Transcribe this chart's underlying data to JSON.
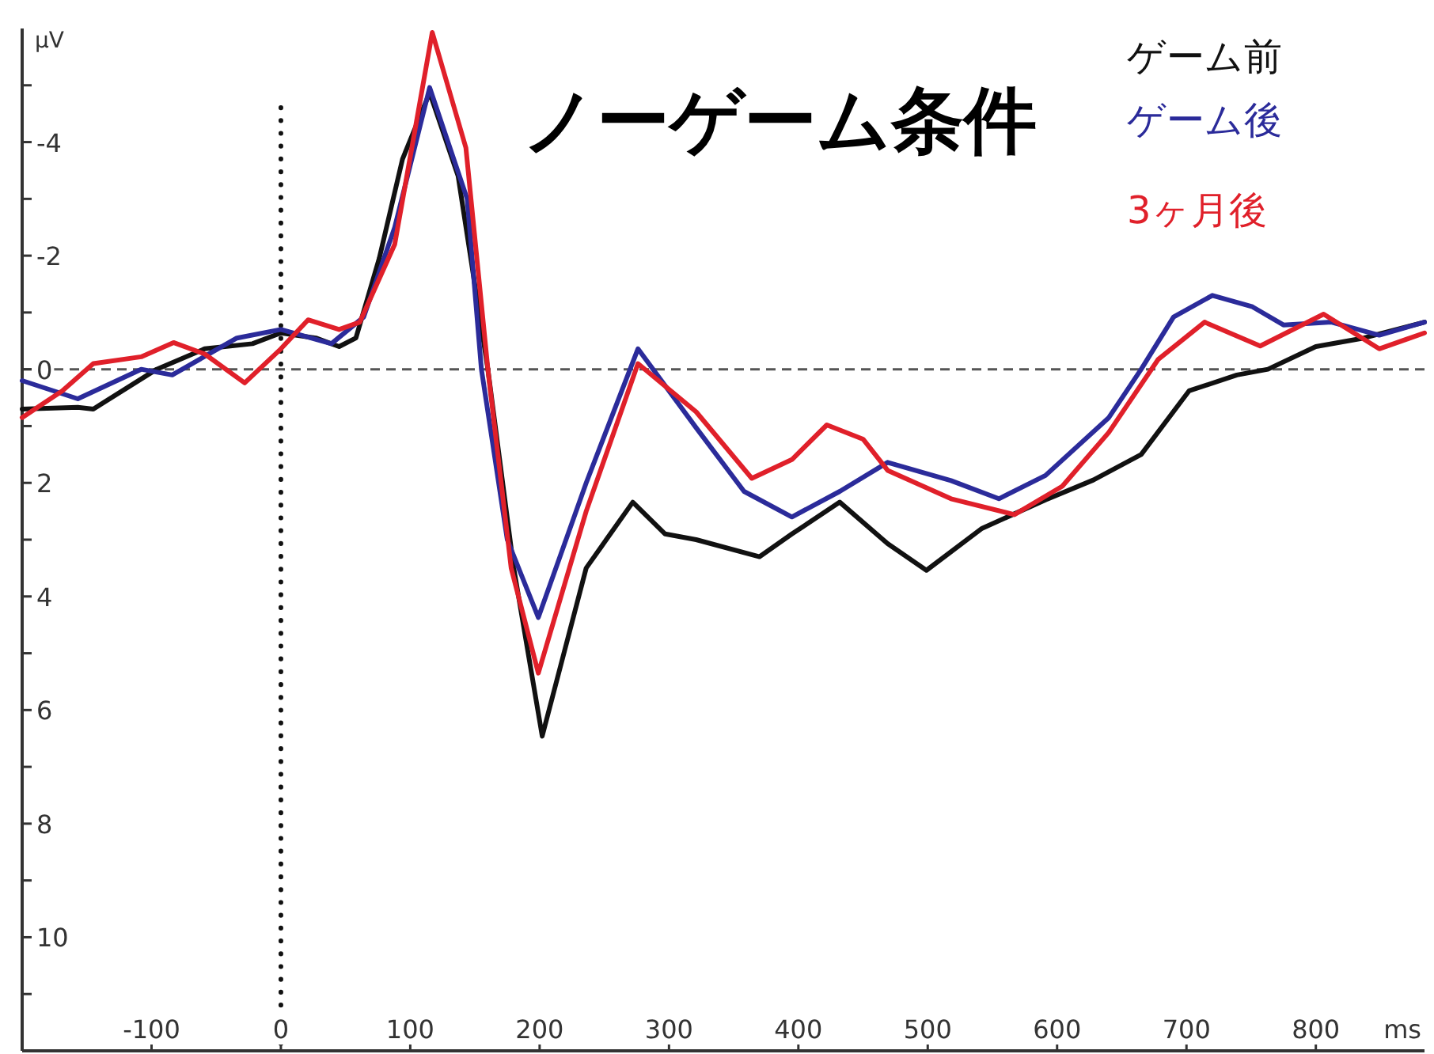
{
  "chart_data": {
    "type": "line",
    "title": "ノーゲーム条件",
    "xlabel": "ms",
    "ylabel": "μV",
    "xlim": [
      -200,
      884
    ],
    "ylim": [
      12,
      -6
    ],
    "xticks": [
      -100,
      0,
      100,
      200,
      300,
      400,
      500,
      600,
      700,
      800
    ],
    "yticks": [
      {
        "value": -5,
        "label": null
      },
      -4,
      {
        "value": -3,
        "label": null
      },
      -2,
      {
        "value": -1,
        "label": null
      },
      0,
      {
        "value": 1,
        "label": null
      },
      2,
      {
        "value": 3,
        "label": null
      },
      4,
      {
        "value": 5,
        "label": null
      },
      6,
      {
        "value": 7,
        "label": null
      },
      8,
      {
        "value": 9,
        "label": null
      },
      10,
      {
        "value": 11,
        "label": null
      }
    ],
    "grid": false,
    "legend": "top right",
    "marker": "none",
    "line_style": "solid",
    "ref_lines": [
      {
        "axis": "x",
        "value": 0,
        "label": null,
        "color": "#111111",
        "line_style": "dotted"
      },
      {
        "axis": "y",
        "value": 0,
        "label": null,
        "color": "#555555",
        "line_style": "dashed"
      }
    ],
    "series": [
      {
        "name": "ゲーム前",
        "color": "#111111",
        "x": [
          -200,
          -157,
          -145,
          -96,
          -59,
          -22,
          0,
          27,
          45,
          58,
          76,
          94,
          115,
          137,
          160,
          180,
          202,
          236,
          272,
          297,
          321,
          370,
          395,
          432,
          469,
          499,
          542,
          591,
          628,
          665,
          702,
          739,
          763,
          800,
          837,
          884
        ],
        "values": [
          0.7,
          0.67,
          0.7,
          0,
          -0.36,
          -0.45,
          -0.64,
          -0.55,
          -0.4,
          -0.55,
          -1.95,
          -3.7,
          -4.87,
          -3.4,
          0,
          3.5,
          6.46,
          3.5,
          2.34,
          2.9,
          3.0,
          3.3,
          2.9,
          2.34,
          3.07,
          3.54,
          2.8,
          2.3,
          1.95,
          1.5,
          0.38,
          0.1,
          0,
          -0.4,
          -0.55,
          -0.83
        ]
      },
      {
        "name": "ゲーム後",
        "color": "#2b2b9a",
        "x": [
          -200,
          -157,
          -108,
          -84,
          -34,
          0,
          39,
          64,
          88,
          115,
          144,
          155,
          175,
          199,
          236,
          276,
          321,
          358,
          395,
          432,
          469,
          518,
          555,
          591,
          640,
          665,
          690,
          720,
          751,
          775,
          812,
          849,
          884
        ],
        "values": [
          0.2,
          0.52,
          0,
          0.1,
          -0.55,
          -0.7,
          -0.45,
          -0.92,
          -2.5,
          -4.96,
          -3.0,
          0,
          3.0,
          4.37,
          2.0,
          -0.36,
          1.03,
          2.15,
          2.6,
          2.15,
          1.64,
          1.96,
          2.28,
          1.87,
          0.85,
          0,
          -0.92,
          -1.3,
          -1.1,
          -0.78,
          -0.83,
          -0.6,
          -0.83
        ]
      },
      {
        "name": "3ヶ月後",
        "color": "#e0202a",
        "x": [
          -200,
          -169,
          -145,
          -108,
          -83,
          -59,
          -28,
          0,
          21,
          45,
          61,
          88,
          117,
          143,
          160,
          178,
          199,
          236,
          276,
          321,
          364,
          395,
          422,
          450,
          469,
          518,
          567,
          604,
          640,
          678,
          714,
          757,
          806,
          849,
          884
        ],
        "values": [
          0.85,
          0.38,
          -0.1,
          -0.22,
          -0.47,
          -0.27,
          0.24,
          -0.36,
          -0.87,
          -0.7,
          -0.83,
          -2.2,
          -5.93,
          -3.9,
          0,
          3.5,
          5.35,
          2.5,
          -0.1,
          0.75,
          1.92,
          1.59,
          0.98,
          1.23,
          1.78,
          2.28,
          2.56,
          2.06,
          1.11,
          -0.17,
          -0.83,
          -0.41,
          -0.97,
          -0.36,
          -0.64
        ]
      }
    ]
  }
}
